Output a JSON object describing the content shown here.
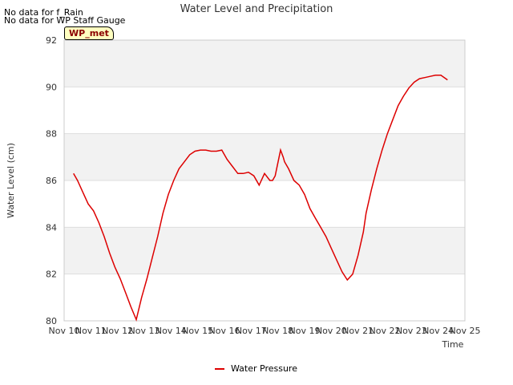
{
  "notes": [
    "No data for f_Rain",
    "No data for WP Staff Gauge"
  ],
  "station_label": "WP_met",
  "chart_data": {
    "type": "line",
    "title": "Water Level and Precipitation",
    "xlabel": "Time",
    "ylabel": "Water Level (cm)",
    "ylim": [
      80,
      92
    ],
    "yticks": [
      80,
      82,
      84,
      86,
      88,
      90,
      92
    ],
    "xlim": [
      10,
      25
    ],
    "xticks": [
      10,
      11,
      12,
      13,
      14,
      15,
      16,
      17,
      18,
      19,
      20,
      21,
      22,
      23,
      24,
      25
    ],
    "xtick_labels": [
      "Nov 10",
      "Nov 11",
      "Nov 12",
      "Nov 13",
      "Nov 14",
      "Nov 15",
      "Nov 16",
      "Nov 17",
      "Nov 18",
      "Nov 19",
      "Nov 20",
      "Nov 21",
      "Nov 22",
      "Nov 23",
      "Nov 24",
      "Nov 25"
    ],
    "grid": true,
    "legend_position": "bottom-center",
    "series": [
      {
        "name": "Water Pressure",
        "color": "#dd0000",
        "x": [
          10.35,
          10.5,
          10.7,
          10.9,
          11.1,
          11.3,
          11.5,
          11.7,
          11.9,
          12.1,
          12.3,
          12.5,
          12.7,
          12.9,
          13.0,
          13.1,
          13.3,
          13.5,
          13.7,
          13.9,
          14.1,
          14.3,
          14.5,
          14.7,
          14.9,
          15.1,
          15.3,
          15.5,
          15.7,
          15.9,
          16.1,
          16.3,
          16.5,
          16.7,
          16.9,
          17.1,
          17.3,
          17.5,
          17.7,
          17.8,
          17.9,
          18.1,
          18.2,
          18.25,
          18.4,
          18.6,
          18.8,
          19.0,
          19.2,
          19.4,
          19.6,
          19.8,
          20.0,
          20.2,
          20.4,
          20.6,
          20.8,
          21.0,
          21.2,
          21.3,
          21.5,
          21.7,
          21.9,
          22.1,
          22.3,
          22.5,
          22.7,
          22.9,
          23.1,
          23.3,
          23.5,
          23.7,
          23.9,
          24.1,
          24.35
        ],
        "values": [
          86.3,
          86.0,
          85.5,
          85.0,
          84.7,
          84.2,
          83.6,
          82.9,
          82.3,
          81.8,
          81.2,
          80.6,
          80.05,
          81.0,
          81.4,
          81.8,
          82.7,
          83.6,
          84.6,
          85.4,
          86.0,
          86.5,
          86.8,
          87.1,
          87.25,
          87.3,
          87.3,
          87.25,
          87.25,
          87.3,
          86.9,
          86.6,
          86.3,
          86.3,
          86.35,
          86.2,
          85.8,
          86.3,
          86.0,
          86.0,
          86.2,
          87.3,
          87.0,
          86.8,
          86.5,
          86.0,
          85.8,
          85.4,
          84.8,
          84.4,
          84.0,
          83.6,
          83.1,
          82.6,
          82.1,
          81.75,
          82.0,
          82.8,
          83.8,
          84.6,
          85.6,
          86.5,
          87.3,
          88.0,
          88.6,
          89.2,
          89.6,
          89.95,
          90.2,
          90.35,
          90.4,
          90.45,
          90.5,
          90.5,
          90.3
        ]
      }
    ]
  }
}
